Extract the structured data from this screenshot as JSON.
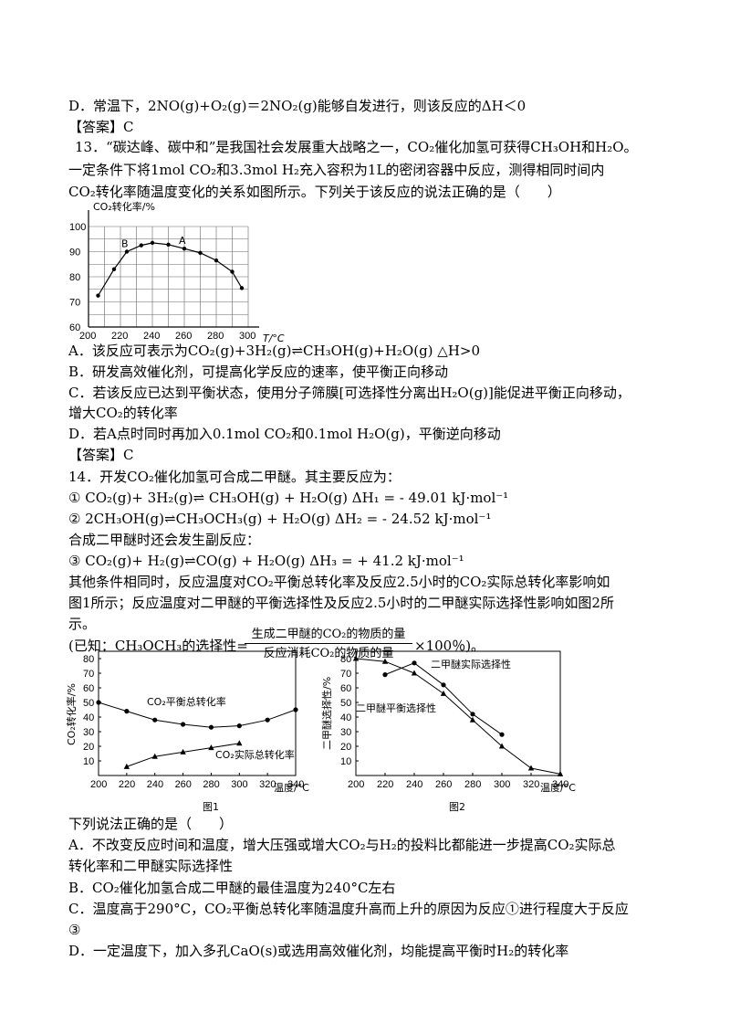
{
  "lines": [
    "D．常温下，2NO(g)+O₂(g)＝2NO₂(g)能够自发进行，则该反应的ΔH＜0",
    "【答案】C",
    "13．“碳达峰、碳中和”是我国社会发展重大战略之一，CO₂催化加氢可获得CH₃OH和H₂O。",
    "一定条件下将1mol  CO₂和3.3mol  H₂充入容积为1L的密闭容器中反应，测得相同时间内",
    "CO₂转化率随温度变化的关系如图所示。下列关于该反应的说法正确的是（　　）",
    "A．该反应可表示为CO₂(g)+3H₂(g)⇌CH₃OH(g)+H₂O(g) △H>0",
    "B．研发高效催化剂，可提高化学反应的速率，使平衡正向移动",
    "C．若该反应已达到平衡状态，使用分子筛膜[可选择性分离出H₂O(g)]能促进平衡正向移动，",
    "增大CO₂的转化率",
    "D．若A点时同时再加入0.1mol CO₂和0.1mol  H₂O(g)，平衡逆向移动",
    "【答案】C",
    "14．开发CO₂催化加氢可合成二甲醚。其主要反应为：",
    "① CO₂(g)+ 3H₂(g)⇌ CH₃OH(g) + H₂O(g)  ΔH₁ = - 49.01 kJ·mol⁻¹",
    "② 2CH₃OH(g)⇌CH₃OCH₃(g) + H₂O(g)  ΔH₂ = - 24.52 kJ·mol⁻¹",
    "合成二甲醚时还会发生副反应：",
    "③ CO₂(g)+ H₂(g)⇌CO(g) + H₂O(g)  ΔH₃ = + 41.2 kJ·mol⁻¹",
    "其他条件相同时，反应温度对CO₂平衡总转化率及反应2.5小时的CO₂实际总转化率影响如",
    "图1所示；反应温度对二甲醚的平衡选择性及反应2.5小时的二甲醚实际选择性影响如图2所",
    "示。",
    "(已知：CH₃OCH₃的选择性=",
    "×100％)。",
    "下列说法正确的是（　　）",
    "A．不改变反应时间和温度，增大压强或增大CO₂与H₂的投料比都能进一步提高CO₂实际总",
    "转化率和二甲醚实际选择性",
    "B．CO₂催化加氢合成二甲醚的最佳温度为240°C左右",
    "C．温度高于290°C，CO₂平衡总转化率随温度升高而上升的原因为反应①进行程度大于反应",
    "③",
    "D．一定温度下，加入多孔CaO(s)或选用高效催化剂，均能提高平衡时H₂的转化率"
  ],
  "fraction": {
    "numerator": "生成二甲醚的CO₂的物质的量",
    "denominator": "反应消耗CO₂的物质的量"
  },
  "chart_data": [
    {
      "type": "line",
      "ylabel": "CO₂转化率/%",
      "xlabel": "T/°C",
      "xlim": [
        200,
        300
      ],
      "ylim": [
        60,
        100
      ],
      "xticks": [
        "200",
        "220",
        "240",
        "260",
        "280",
        "300"
      ],
      "yticks": [
        "60",
        "70",
        "80",
        "90",
        "100"
      ],
      "grid": true,
      "series": [
        {
          "x": [
            206,
            216,
            224,
            233,
            240,
            250,
            260,
            270,
            280,
            290,
            296
          ],
          "values": [
            72.5,
            83,
            90,
            92.5,
            93.5,
            92.8,
            91.2,
            89.5,
            86.5,
            82,
            75.5
          ]
        }
      ],
      "annotations": [
        {
          "text": "B",
          "x": 224,
          "y": 90
        },
        {
          "text": "A",
          "x": 260,
          "y": 91.2
        }
      ]
    },
    {
      "type": "line",
      "caption": "图1",
      "ylabel": "CO₂转化率/%",
      "xlabel": "温度/°C",
      "xlim": [
        200,
        340
      ],
      "ylim": [
        0,
        80
      ],
      "xticks": [
        "200",
        "220",
        "240",
        "260",
        "280",
        "300",
        "320",
        "340"
      ],
      "yticks": [
        "10",
        "20",
        "30",
        "40",
        "50",
        "60",
        "70",
        "80"
      ],
      "series": [
        {
          "name": "CO₂平衡总转化率",
          "marker": "circle",
          "x": [
            200,
            220,
            240,
            260,
            280,
            300,
            320,
            340
          ],
          "values": [
            50,
            44,
            38,
            35,
            33,
            34,
            38,
            45
          ]
        },
        {
          "name": "CO₂实际总转化率",
          "marker": "triangle",
          "x": [
            220,
            240,
            260,
            280,
            300
          ],
          "values": [
            6,
            13,
            16,
            19,
            22
          ]
        }
      ]
    },
    {
      "type": "line",
      "caption": "图2",
      "ylabel": "二甲醚选择性/%",
      "xlabel": "温度/°C",
      "xlim": [
        200,
        340
      ],
      "ylim": [
        0,
        80
      ],
      "xticks": [
        "200",
        "220",
        "240",
        "260",
        "280",
        "300",
        "320",
        "340"
      ],
      "yticks": [
        "10",
        "20",
        "30",
        "40",
        "50",
        "60",
        "70",
        "80"
      ],
      "series": [
        {
          "name": "二甲醚实际选择性",
          "marker": "circle",
          "x": [
            220,
            240,
            260,
            280,
            300
          ],
          "values": [
            69,
            77,
            62,
            42,
            28
          ]
        },
        {
          "name": "二甲醚平衡选择性",
          "marker": "triangle",
          "x": [
            200,
            220,
            240,
            260,
            280,
            300,
            320,
            340
          ],
          "values": [
            80,
            78,
            70,
            56,
            38,
            20,
            5,
            1
          ]
        }
      ]
    }
  ]
}
